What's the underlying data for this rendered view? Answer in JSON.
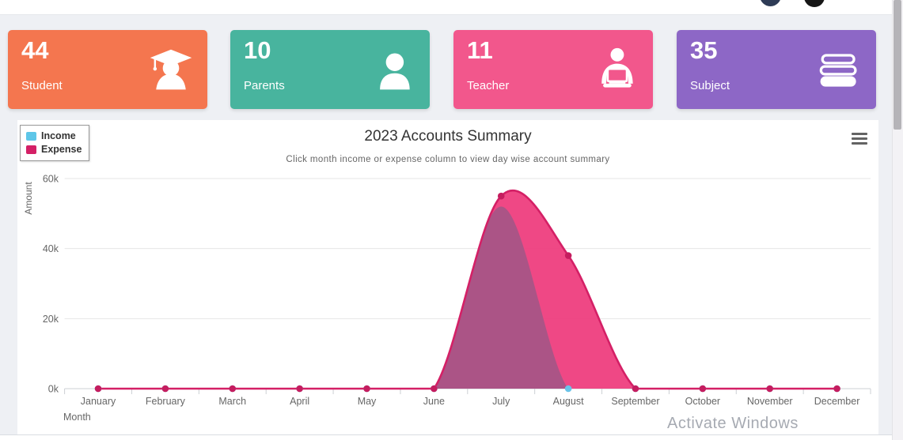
{
  "topbar": {
    "icons": [
      "user-avatar",
      "user-avatar"
    ]
  },
  "cards": [
    {
      "value": "44",
      "label": "Student",
      "color": "#f4764f",
      "icon": "graduate-icon"
    },
    {
      "value": "10",
      "label": "Parents",
      "color": "#48b49e",
      "icon": "person-icon"
    },
    {
      "value": "11",
      "label": "Teacher",
      "color": "#f2578c",
      "icon": "teacher-laptop-icon"
    },
    {
      "value": "35",
      "label": "Subject",
      "color": "#8d67c6",
      "icon": "books-icon"
    }
  ],
  "chart": {
    "title": "2023 Accounts Summary",
    "subtitle": "Click month income or expense column to view day wise account summary",
    "legend": [
      {
        "label": "Income",
        "color": "#5ec6e8"
      },
      {
        "label": "Expense",
        "color": "#d42066"
      }
    ],
    "xlabel": "Month",
    "ylabel": "Amount",
    "yticks": [
      "60k",
      "40k",
      "20k",
      "0k"
    ],
    "menu_icon": "hamburger-menu-icon"
  },
  "chart_data": {
    "type": "area",
    "title": "2023 Accounts Summary",
    "categories": [
      "January",
      "February",
      "March",
      "April",
      "May",
      "June",
      "July",
      "August",
      "September",
      "October",
      "November",
      "December"
    ],
    "series": [
      {
        "name": "Income",
        "values": [
          0,
          0,
          0,
          0,
          0,
          0,
          52000,
          0,
          0,
          0,
          0,
          0
        ],
        "color": "#5ec6e8",
        "fill": "#ab5486",
        "marker": "#6ac3e8"
      },
      {
        "name": "Expense",
        "values": [
          0,
          0,
          0,
          0,
          0,
          0,
          55000,
          38000,
          0,
          0,
          0,
          0
        ],
        "color": "#d42066",
        "fill": "#ee3e7e",
        "marker": "#c51d5f"
      }
    ],
    "ylim": [
      0,
      60000
    ],
    "ytick_values": [
      60000,
      40000,
      20000,
      0
    ],
    "xlabel": "Month",
    "ylabel": "Amount",
    "grid": true,
    "legend_position": "top-left"
  },
  "watermark": "Activate Windows"
}
